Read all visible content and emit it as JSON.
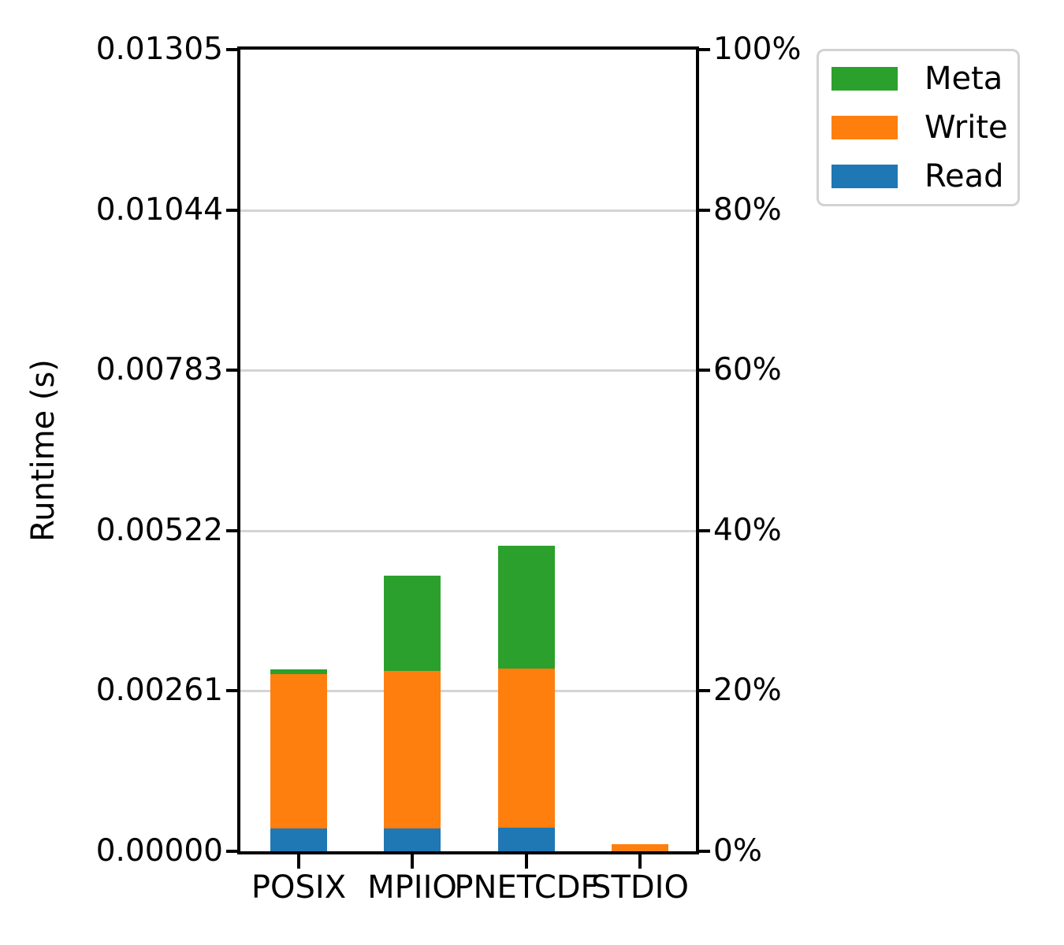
{
  "chart_data": {
    "type": "bar",
    "stacked": true,
    "title": "",
    "xlabel": "",
    "ylabel": "Runtime (s)",
    "categories": [
      "POSIX",
      "MPIIO",
      "PNETCDF",
      "STDIO"
    ],
    "series": [
      {
        "name": "Read",
        "color": "#1f77b4",
        "values": [
          0.00037,
          0.00037,
          0.00038,
          0.0
        ]
      },
      {
        "name": "Write",
        "color": "#ff7f0e",
        "values": [
          0.00252,
          0.00256,
          0.0026,
          0.00012
        ]
      },
      {
        "name": "Meta",
        "color": "#2ca02c",
        "values": [
          7e-05,
          0.00156,
          0.00199,
          0.0
        ]
      }
    ],
    "totals": [
      0.00296,
      0.00449,
      0.00497,
      0.00012
    ],
    "left_axis": {
      "label": "Runtime (s)",
      "min": 0.0,
      "max": 0.01305,
      "tick_labels": [
        "0.00000",
        "0.00261",
        "0.00522",
        "0.00783",
        "0.01044",
        "0.01305"
      ]
    },
    "right_axis": {
      "min_label": "0%",
      "max_label": "100%",
      "tick_labels": [
        "0%",
        "20%",
        "40%",
        "60%",
        "80%",
        "100%"
      ]
    },
    "legend": {
      "position": "upper right, outside plot",
      "entries": [
        {
          "label": "Meta",
          "color": "#2ca02c"
        },
        {
          "label": "Write",
          "color": "#ff7f0e"
        },
        {
          "label": "Read",
          "color": "#1f77b4"
        }
      ]
    },
    "grid": true,
    "grid_color": "#d4d4d4",
    "bar_width_fraction": 0.5,
    "background_color": "#ffffff",
    "spine_color": "#000000"
  }
}
